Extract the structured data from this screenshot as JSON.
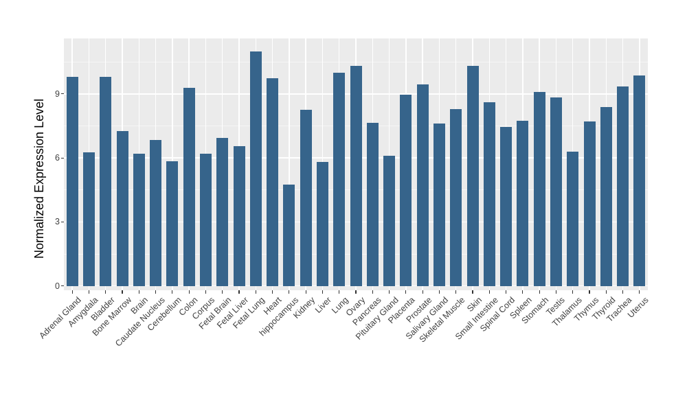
{
  "chart_data": {
    "type": "bar",
    "title": "",
    "xlabel": "",
    "ylabel": "Normalized Expression Level",
    "categories": [
      "Adrenal Gland",
      "Amygdala",
      "Bladder",
      "Bone Marrow",
      "Brain",
      "Caudate Nucleus",
      "Cerebellum",
      "Colon",
      "Corpus",
      "Fetal Brain",
      "Fetal Liver",
      "Fetal Lung",
      "Heart",
      "hippocampus",
      "Kidney",
      "Liver",
      "Lung",
      "Ovary",
      "Pancreas",
      "Pituitary Gland",
      "Placenta",
      "Prostate",
      "Salivary Gland",
      "Skeletal Muscle",
      "Skin",
      "Small Intestine",
      "Spinal Cord",
      "Spleen",
      "Stomach",
      "Testis",
      "Thalamus",
      "Thymus",
      "Thyroid",
      "Trachea",
      "Uterus"
    ],
    "values": [
      9.8,
      6.25,
      9.8,
      7.25,
      6.2,
      6.85,
      5.85,
      9.3,
      6.2,
      6.95,
      6.55,
      11.0,
      9.75,
      4.75,
      8.25,
      5.8,
      10.0,
      10.3,
      7.65,
      6.1,
      8.95,
      9.45,
      7.6,
      8.3,
      10.3,
      8.6,
      7.45,
      7.75,
      9.1,
      8.85,
      6.3,
      7.7,
      8.4,
      9.35,
      9.85
    ],
    "ylim": [
      0,
      11.6
    ],
    "yticks": [
      0,
      3,
      6,
      9
    ],
    "y_minor": [
      1.5,
      4.5,
      7.5,
      10.5
    ],
    "grid": true,
    "legend": "none",
    "bar_color": "#36648B",
    "panel_bg": "#EBEBEB",
    "grid_color": "#FFFFFF",
    "tick_color": "#333333",
    "tick_label_color": "#404040"
  }
}
